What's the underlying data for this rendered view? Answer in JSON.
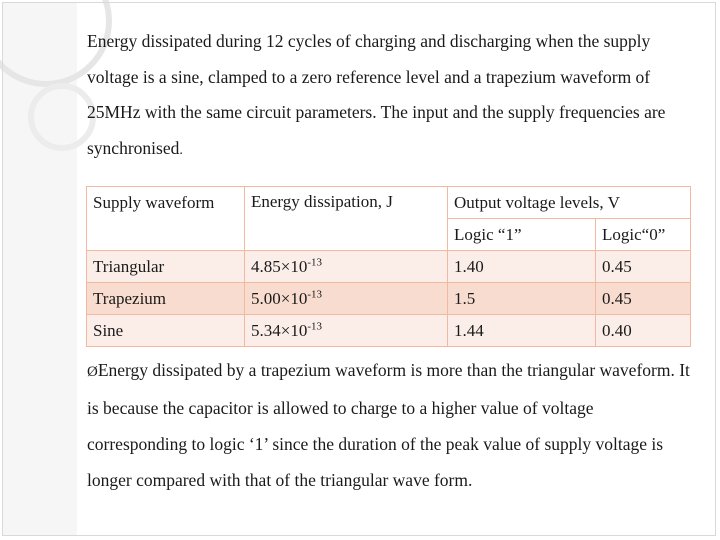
{
  "intro": {
    "text": "Energy dissipated during 12 cycles of charging and discharging when the supply voltage is a sine, clamped to a zero reference level and a trapezium waveform of 25MHz with the same circuit parameters. The input and the supply frequencies are synchronised",
    "tail": "."
  },
  "table": {
    "headers": {
      "supply_waveform": "Supply waveform",
      "energy": "Energy dissipation, J",
      "output_levels": "Output voltage levels, V",
      "logic1": "Logic “1”",
      "logic0": "Logic“0”"
    },
    "rows": [
      {
        "waveform": "Triangular",
        "energy_base": "4.85×10",
        "energy_exp": "-13",
        "logic1": "1.40",
        "logic0": "0.45"
      },
      {
        "waveform": "Trapezium",
        "energy_base": "5.00×10",
        "energy_exp": "-13",
        "logic1": "1.5",
        "logic0": "0.45"
      },
      {
        "waveform": "Sine",
        "energy_base": "5.34×10",
        "energy_exp": "-13",
        "logic1": "1.44",
        "logic0": "0.40"
      }
    ]
  },
  "bullet": {
    "marker": "Ø",
    "text": "Energy dissipated by a trapezium waveform is more than the triangular waveform. It is because the capacitor is allowed to charge to a higher value of voltage corresponding to logic ‘1’ since the duration of the peak value of supply voltage is longer compared with that of the triangular wave form."
  }
}
